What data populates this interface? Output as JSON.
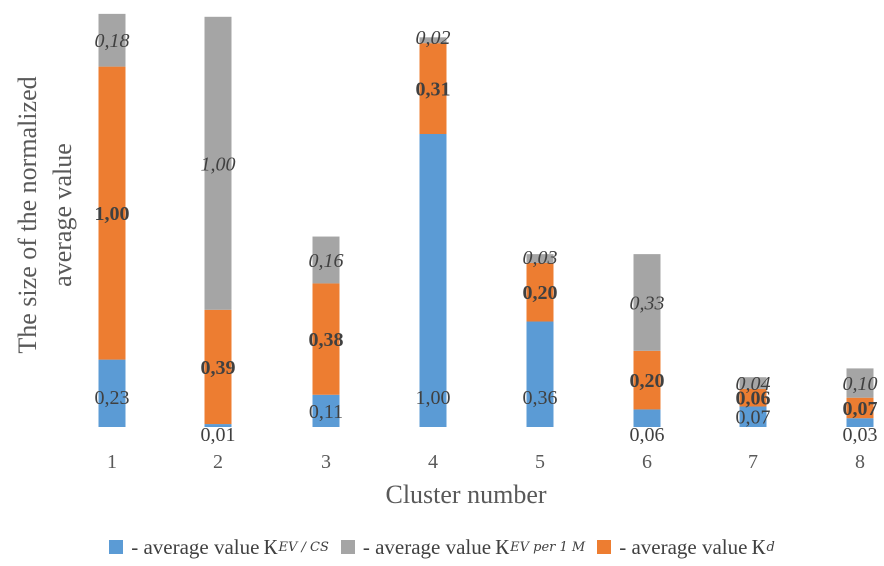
{
  "chart_data": {
    "type": "bar",
    "stacked": true,
    "xlabel": "Cluster number",
    "ylabel_line1": "The size of the normalized",
    "ylabel_line2": "average value",
    "categories": [
      "1",
      "2",
      "3",
      "4",
      "5",
      "6",
      "7",
      "8"
    ],
    "series": [
      {
        "key": "blue",
        "color": "#5b9bd5",
        "values": [
          0.23,
          0.01,
          0.11,
          1.0,
          0.36,
          0.06,
          0.07,
          0.03
        ],
        "labels": [
          "0,23",
          "0,01",
          "0,11",
          "1,00",
          "0,36",
          "0,06",
          "0,07",
          "0,03"
        ],
        "label_style": "normal"
      },
      {
        "key": "orange",
        "color": "#ed7d31",
        "values": [
          1.0,
          0.39,
          0.38,
          0.31,
          0.2,
          0.2,
          0.06,
          0.07
        ],
        "labels": [
          "1,00",
          "0,39",
          "0,38",
          "0,31",
          "0,20",
          "0,20",
          "0,06",
          "0,07"
        ],
        "label_style": "bold"
      },
      {
        "key": "gray",
        "color": "#a5a5a5",
        "values": [
          0.18,
          1.0,
          0.16,
          0.02,
          0.03,
          0.33,
          0.04,
          0.1
        ],
        "labels": [
          "0,18",
          "1,00",
          "0,16",
          "0,02",
          "0,03",
          "0,33",
          "0,04",
          "0,10"
        ],
        "label_style": "italic"
      }
    ],
    "legend": [
      {
        "key": "blue",
        "color": "#5b9bd5",
        "text": "- average value",
        "symbol": "К",
        "subscript": "EV / CS"
      },
      {
        "key": "gray",
        "color": "#a5a5a5",
        "text": "- average value",
        "symbol": "К",
        "subscript": "EV per 1 M"
      },
      {
        "key": "orange",
        "color": "#ed7d31",
        "text": "- average value",
        "symbol": "К",
        "subscript": "d"
      }
    ],
    "legend_position": "bottom",
    "grid": false
  }
}
